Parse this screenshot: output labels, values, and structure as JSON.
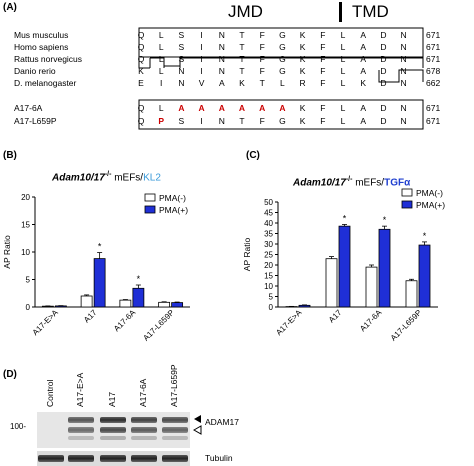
{
  "panel_a": {
    "label": "(A)",
    "jmd_label": "JMD",
    "tmd_label": "TMD",
    "rows": [
      {
        "species": "Mus musculus",
        "residues": [
          "Q",
          "L",
          "S",
          "I",
          "N",
          "T",
          "F",
          "G",
          "K",
          "F",
          "L",
          "A",
          "D",
          "N"
        ],
        "number": "671"
      },
      {
        "species": "Homo sapiens",
        "residues": [
          "Q",
          "L",
          "S",
          "I",
          "N",
          "T",
          "F",
          "G",
          "K",
          "F",
          "L",
          "A",
          "D",
          "N"
        ],
        "number": "671"
      },
      {
        "species": "Rattus norvegicus",
        "residues": [
          "Q",
          "L",
          "S",
          "I",
          "N",
          "T",
          "F",
          "G",
          "K",
          "F",
          "L",
          "A",
          "D",
          "N"
        ],
        "number": "671"
      },
      {
        "species": "Danio rerio",
        "residues": [
          "K",
          "L",
          "N",
          "I",
          "N",
          "T",
          "F",
          "G",
          "K",
          "F",
          "L",
          "A",
          "D",
          "N"
        ],
        "number": "678"
      },
      {
        "species": "D. melanogaster",
        "residues": [
          "E",
          "I",
          "N",
          "V",
          "A",
          "K",
          "T",
          "L",
          "R",
          "F",
          "L",
          "K",
          "D",
          "N"
        ],
        "number": "662"
      }
    ],
    "mutants": [
      {
        "name": "A17-6A",
        "residues": [
          "Q",
          "L",
          "A",
          "A",
          "A",
          "A",
          "A",
          "A",
          "K",
          "F",
          "L",
          "A",
          "D",
          "N"
        ],
        "number": "671"
      },
      {
        "name": "A17-L659P",
        "residues": [
          "Q",
          "P",
          "S",
          "I",
          "N",
          "T",
          "F",
          "G",
          "K",
          "F",
          "L",
          "A",
          "D",
          "N"
        ],
        "number": "671"
      }
    ]
  },
  "panel_b": {
    "label": "(B)",
    "title_main": "Adam10/17",
    "title_sup": "-/-",
    "title_mid": " mEFs/",
    "title_ligand": "KL2",
    "ligand_color": "#3a9ad9"
  },
  "panel_c": {
    "label": "(C)",
    "title_main": "Adam10/17",
    "title_sup": "-/-",
    "title_mid": " mEFs/",
    "title_ligand": "TGFα",
    "ligand_color": "#1f3fcf"
  },
  "panel_d": {
    "label": "(D)",
    "lanes": [
      "Control",
      "A17-E>A",
      "A17",
      "A17-6A",
      "A17-L659P"
    ],
    "marker": "100-",
    "band_label": "ADAM17",
    "loading_label": "Tubulin"
  },
  "colors": {
    "pma_minus": "#ffffff",
    "pma_plus": "#1f2fd6",
    "asterisk": "#000000"
  },
  "chart_data": [
    {
      "type": "bar",
      "panel": "B",
      "categories": [
        "A17-E>A",
        "A17",
        "A17-6A",
        "A17-L659P"
      ],
      "series": [
        {
          "name": "PMA(-)",
          "values": [
            0.15,
            2.0,
            1.25,
            0.85
          ],
          "errors": [
            0.05,
            0.2,
            0.1,
            0.1
          ]
        },
        {
          "name": "PMA(+)",
          "values": [
            0.2,
            8.8,
            3.4,
            0.8
          ],
          "errors": [
            0.05,
            1.1,
            0.6,
            0.1
          ]
        }
      ],
      "significance": [
        "",
        "*",
        "*",
        ""
      ],
      "ylabel": "AP Ratio",
      "ylim": [
        0,
        20
      ],
      "yticks": [
        0,
        5,
        10,
        15,
        20
      ],
      "legend": "top-right"
    },
    {
      "type": "bar",
      "panel": "C",
      "categories": [
        "A17-E>A",
        "A17",
        "A17-6A",
        "A17-L659P"
      ],
      "series": [
        {
          "name": "PMA(-)",
          "values": [
            0.2,
            23.0,
            19.0,
            12.5
          ],
          "errors": [
            0.1,
            1.0,
            1.0,
            0.7
          ]
        },
        {
          "name": "PMA(+)",
          "values": [
            0.8,
            38.5,
            37.0,
            29.5
          ],
          "errors": [
            0.2,
            0.8,
            1.5,
            1.5
          ]
        }
      ],
      "significance": [
        "",
        "*",
        "*",
        "*"
      ],
      "ylabel": "AP Ratio",
      "ylim": [
        0,
        50
      ],
      "yticks": [
        0,
        5,
        10,
        15,
        20,
        25,
        30,
        35,
        40,
        45,
        50
      ],
      "legend": "top-right"
    }
  ]
}
